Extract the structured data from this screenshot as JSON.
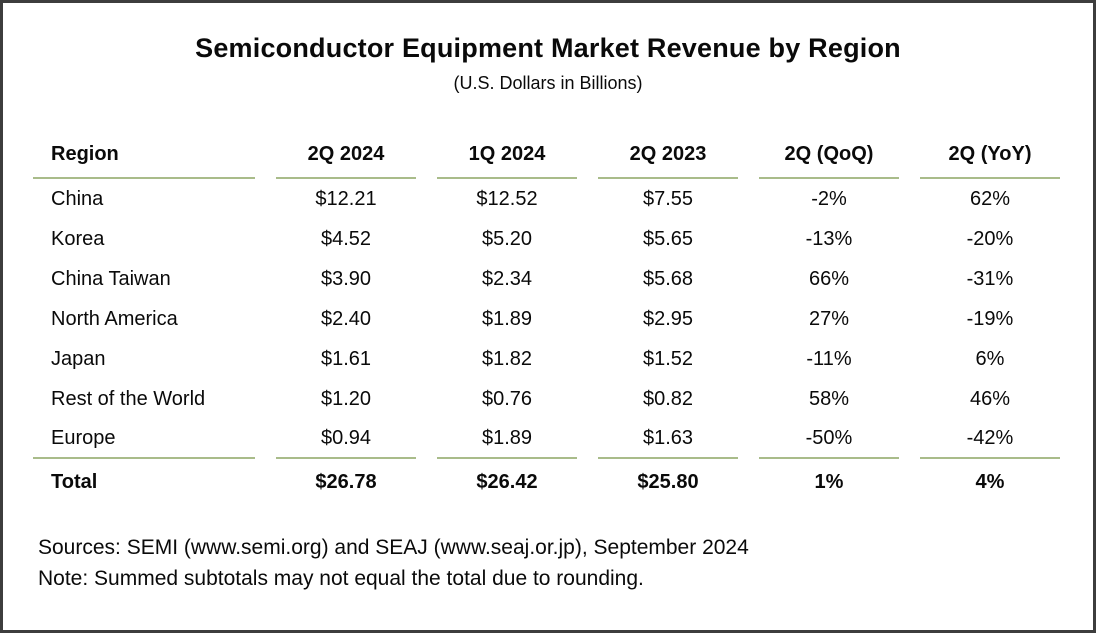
{
  "header": {
    "title": "Semiconductor Equipment Market Revenue by Region",
    "subtitle": "(U.S. Dollars in Billions)"
  },
  "table": {
    "columns": [
      "Region",
      "2Q 2024",
      "1Q 2024",
      "2Q 2023",
      "2Q (QoQ)",
      "2Q (YoY)"
    ],
    "rows": [
      {
        "region": "China",
        "values": [
          "$12.21",
          "$12.52",
          "$7.55",
          "-2%",
          "62%"
        ]
      },
      {
        "region": "Korea",
        "values": [
          "$4.52",
          "$5.20",
          "$5.65",
          "-13%",
          "-20%"
        ]
      },
      {
        "region": "China Taiwan",
        "values": [
          "$3.90",
          "$2.34",
          "$5.68",
          "66%",
          "-31%"
        ]
      },
      {
        "region": "North America",
        "values": [
          "$2.40",
          "$1.89",
          "$2.95",
          "27%",
          "-19%"
        ]
      },
      {
        "region": "Japan",
        "values": [
          "$1.61",
          "$1.82",
          "$1.52",
          "-11%",
          "6%"
        ]
      },
      {
        "region": "Rest of the World",
        "values": [
          "$1.20",
          "$0.76",
          "$0.82",
          "58%",
          "46%"
        ]
      },
      {
        "region": "Europe",
        "values": [
          "$0.94",
          "$1.89",
          "$1.63",
          "-50%",
          "-42%"
        ]
      }
    ],
    "total": {
      "region": "Total",
      "values": [
        "$26.78",
        "$26.42",
        "$25.80",
        "1%",
        "4%"
      ]
    }
  },
  "footer": {
    "sources": "Sources: SEMI (www.semi.org) and SEAJ (www.seaj.or.jp), September 2024",
    "note": "Note: Summed subtotals may not equal the total due to rounding."
  },
  "colors": {
    "rule_green": "#a9bc8a",
    "border_gray": "#3d3d3d",
    "text": "#0a0a0a",
    "background": "#ffffff"
  },
  "chart_data": {
    "type": "table",
    "title": "Semiconductor Equipment Market Revenue by Region",
    "subtitle": "(U.S. Dollars in Billions)",
    "columns": [
      "Region",
      "2Q 2024",
      "1Q 2024",
      "2Q 2023",
      "2Q (QoQ)",
      "2Q (YoY)"
    ],
    "rows": [
      [
        "China",
        12.21,
        12.52,
        7.55,
        "-2%",
        "62%"
      ],
      [
        "Korea",
        4.52,
        5.2,
        5.65,
        "-13%",
        "-20%"
      ],
      [
        "China Taiwan",
        3.9,
        2.34,
        5.68,
        "66%",
        "-31%"
      ],
      [
        "North America",
        2.4,
        1.89,
        2.95,
        "27%",
        "-19%"
      ],
      [
        "Japan",
        1.61,
        1.82,
        1.52,
        "-11%",
        "6%"
      ],
      [
        "Rest of the World",
        1.2,
        0.76,
        0.82,
        "58%",
        "46%"
      ],
      [
        "Europe",
        0.94,
        1.89,
        1.63,
        "-50%",
        "-42%"
      ]
    ],
    "total_row": [
      "Total",
      26.78,
      26.42,
      25.8,
      "1%",
      "4%"
    ],
    "units": "U.S. Dollars in Billions",
    "sources": "SEMI (www.semi.org) and SEAJ (www.seaj.or.jp), September 2024"
  }
}
